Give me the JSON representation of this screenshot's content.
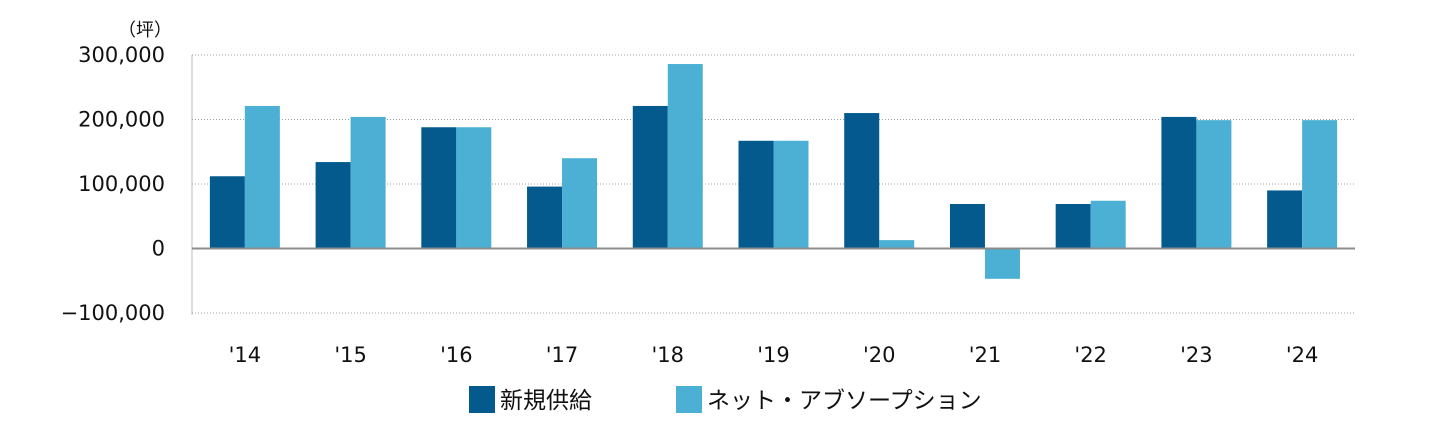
{
  "chart_data": {
    "type": "bar",
    "unit_label": "（坪）",
    "categories": [
      "'14",
      "'15",
      "'16",
      "'17",
      "'18",
      "'19",
      "'20",
      "'21",
      "'22",
      "'23",
      "'24"
    ],
    "series": [
      {
        "name": "新規供給",
        "color": "#045a8d",
        "values": [
          112000,
          134000,
          188000,
          96000,
          221000,
          167000,
          210000,
          69000,
          69000,
          204000,
          90000
        ]
      },
      {
        "name": "ネット・アブソープション",
        "color": "#4bb0d3",
        "values": [
          221000,
          204000,
          188000,
          140000,
          286000,
          167000,
          13000,
          -47000,
          74000,
          199000,
          199000
        ]
      }
    ],
    "yticks": [
      {
        "value": 300000,
        "label": "300,000"
      },
      {
        "value": 200000,
        "label": "200,000"
      },
      {
        "value": 100000,
        "label": "100,000"
      },
      {
        "value": 0,
        "label": "0"
      },
      {
        "value": -100000,
        "label": "−100,000",
        "color": "#d6001c"
      }
    ],
    "ylim": [
      -100000,
      300000
    ],
    "grid": true,
    "grid_style": "dotted",
    "legend_position": "bottom"
  }
}
